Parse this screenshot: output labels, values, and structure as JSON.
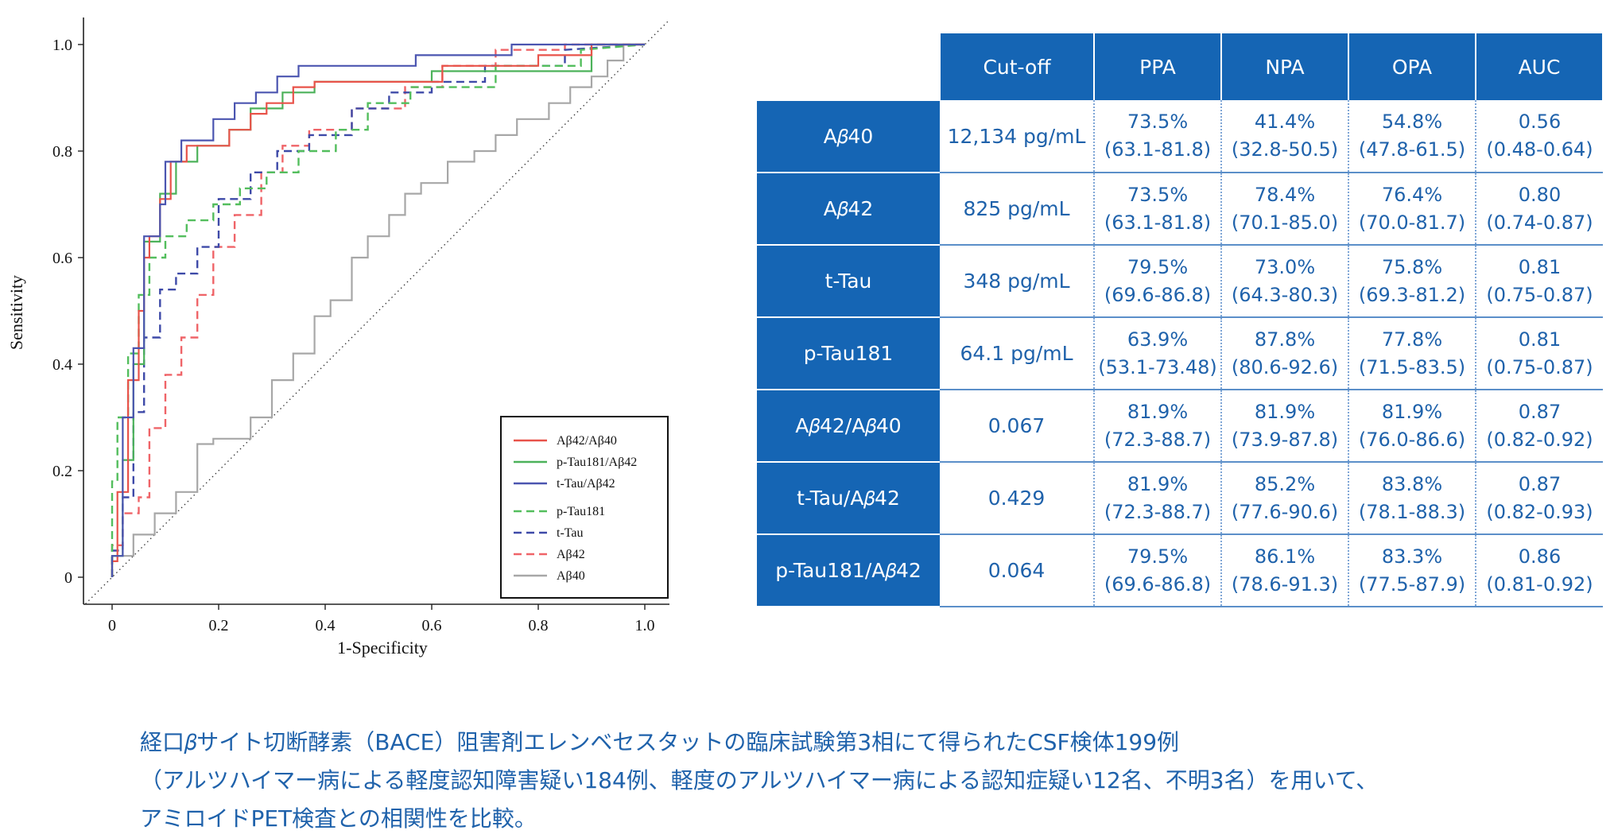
{
  "chart_data": {
    "type": "line",
    "xlabel": "1-Specificity",
    "ylabel": "Sensitivity",
    "xlim": [
      0,
      1
    ],
    "ylim": [
      0,
      1
    ],
    "xticks": [
      "0",
      "0.2",
      "0.4",
      "0.6",
      "0.8",
      "1.0"
    ],
    "yticks": [
      "0",
      "0.2",
      "0.4",
      "0.6",
      "0.8",
      "1.0"
    ],
    "legend_position": "bottom-right",
    "reference_line": "diagonal-dotted",
    "series": [
      {
        "name": "Aβ42/Aβ40",
        "color": "#e8534a",
        "style": "solid",
        "x": [
          0,
          0,
          0.01,
          0.01,
          0.03,
          0.03,
          0.05,
          0.05,
          0.06,
          0.06,
          0.07,
          0.07,
          0.09,
          0.09,
          0.11,
          0.11,
          0.14,
          0.14,
          0.22,
          0.22,
          0.26,
          0.26,
          0.29,
          0.29,
          0.34,
          0.34,
          0.38,
          0.38,
          0.62,
          0.62,
          0.8,
          0.8,
          0.9,
          0.9,
          1.0
        ],
        "y": [
          0,
          0.03,
          0.03,
          0.16,
          0.16,
          0.37,
          0.37,
          0.5,
          0.5,
          0.6,
          0.6,
          0.64,
          0.64,
          0.71,
          0.71,
          0.78,
          0.78,
          0.81,
          0.81,
          0.84,
          0.84,
          0.87,
          0.87,
          0.89,
          0.89,
          0.92,
          0.92,
          0.93,
          0.93,
          0.96,
          0.96,
          0.98,
          0.98,
          1.0,
          1.0
        ]
      },
      {
        "name": "p-Tau181/Aβ42",
        "color": "#4cb25a",
        "style": "solid",
        "x": [
          0,
          0,
          0.02,
          0.02,
          0.04,
          0.04,
          0.06,
          0.06,
          0.09,
          0.09,
          0.12,
          0.12,
          0.16,
          0.16,
          0.22,
          0.22,
          0.26,
          0.26,
          0.32,
          0.32,
          0.38,
          0.38,
          0.6,
          0.6,
          0.9,
          0.9,
          1.0
        ],
        "y": [
          0,
          0.04,
          0.04,
          0.22,
          0.22,
          0.4,
          0.4,
          0.63,
          0.63,
          0.72,
          0.72,
          0.78,
          0.78,
          0.81,
          0.81,
          0.84,
          0.84,
          0.88,
          0.88,
          0.91,
          0.91,
          0.93,
          0.93,
          0.95,
          0.95,
          1.0,
          1.0
        ]
      },
      {
        "name": "t-Tau/Aβ42",
        "color": "#4b55b0",
        "style": "solid",
        "x": [
          0,
          0,
          0.02,
          0.02,
          0.04,
          0.04,
          0.06,
          0.06,
          0.09,
          0.09,
          0.1,
          0.1,
          0.13,
          0.13,
          0.19,
          0.19,
          0.23,
          0.23,
          0.27,
          0.27,
          0.31,
          0.31,
          0.35,
          0.35,
          0.57,
          0.57,
          0.75,
          0.75,
          1.0
        ],
        "y": [
          0,
          0.04,
          0.04,
          0.3,
          0.3,
          0.43,
          0.43,
          0.64,
          0.64,
          0.7,
          0.7,
          0.78,
          0.78,
          0.82,
          0.82,
          0.86,
          0.86,
          0.89,
          0.89,
          0.91,
          0.91,
          0.94,
          0.94,
          0.96,
          0.96,
          0.98,
          0.98,
          1.0,
          1.0
        ]
      },
      {
        "name": "p-Tau181",
        "color": "#53be5d",
        "style": "dashed",
        "x": [
          0,
          0,
          0.01,
          0.01,
          0.03,
          0.03,
          0.05,
          0.05,
          0.07,
          0.07,
          0.1,
          0.1,
          0.14,
          0.14,
          0.19,
          0.19,
          0.24,
          0.24,
          0.29,
          0.29,
          0.35,
          0.35,
          0.42,
          0.42,
          0.48,
          0.48,
          0.56,
          0.56,
          0.72,
          0.72,
          0.88,
          0.88,
          1.0
        ],
        "y": [
          0,
          0.18,
          0.18,
          0.3,
          0.3,
          0.42,
          0.42,
          0.53,
          0.53,
          0.6,
          0.6,
          0.64,
          0.64,
          0.67,
          0.67,
          0.7,
          0.7,
          0.73,
          0.73,
          0.76,
          0.76,
          0.8,
          0.8,
          0.84,
          0.84,
          0.89,
          0.89,
          0.92,
          0.92,
          0.96,
          0.96,
          0.99,
          1.0
        ]
      },
      {
        "name": "t-Tau",
        "color": "#3e4aa8",
        "style": "dashed",
        "x": [
          0,
          0,
          0.02,
          0.02,
          0.04,
          0.04,
          0.06,
          0.06,
          0.09,
          0.09,
          0.12,
          0.12,
          0.16,
          0.16,
          0.2,
          0.2,
          0.26,
          0.26,
          0.31,
          0.31,
          0.37,
          0.37,
          0.45,
          0.45,
          0.52,
          0.52,
          0.6,
          0.6,
          0.7,
          0.7,
          0.85,
          0.85,
          1.0
        ],
        "y": [
          0,
          0.05,
          0.05,
          0.15,
          0.15,
          0.31,
          0.31,
          0.45,
          0.45,
          0.54,
          0.54,
          0.57,
          0.57,
          0.62,
          0.62,
          0.71,
          0.71,
          0.76,
          0.76,
          0.8,
          0.8,
          0.83,
          0.83,
          0.88,
          0.88,
          0.91,
          0.91,
          0.93,
          0.93,
          0.96,
          0.96,
          0.99,
          1.0
        ]
      },
      {
        "name": "Aβ42",
        "color": "#ef6468",
        "style": "dashed",
        "x": [
          0,
          0,
          0.02,
          0.02,
          0.05,
          0.05,
          0.07,
          0.07,
          0.1,
          0.1,
          0.13,
          0.13,
          0.16,
          0.16,
          0.19,
          0.19,
          0.23,
          0.23,
          0.28,
          0.28,
          0.32,
          0.32,
          0.37,
          0.37,
          0.45,
          0.45,
          0.55,
          0.55,
          0.62,
          0.62,
          0.72,
          0.72,
          0.85,
          0.85,
          1.0
        ],
        "y": [
          0,
          0.06,
          0.06,
          0.12,
          0.12,
          0.15,
          0.15,
          0.28,
          0.28,
          0.38,
          0.38,
          0.45,
          0.45,
          0.53,
          0.53,
          0.62,
          0.62,
          0.68,
          0.68,
          0.76,
          0.76,
          0.81,
          0.81,
          0.84,
          0.84,
          0.88,
          0.88,
          0.92,
          0.92,
          0.96,
          0.96,
          0.99,
          0.99,
          1.0,
          1.0
        ]
      },
      {
        "name": "Aβ40",
        "color": "#a7a7a7",
        "style": "solid",
        "x": [
          0,
          0,
          0.04,
          0.04,
          0.08,
          0.08,
          0.12,
          0.12,
          0.16,
          0.16,
          0.19,
          0.19,
          0.26,
          0.26,
          0.3,
          0.3,
          0.34,
          0.34,
          0.38,
          0.38,
          0.41,
          0.41,
          0.45,
          0.45,
          0.48,
          0.48,
          0.52,
          0.52,
          0.55,
          0.55,
          0.58,
          0.58,
          0.63,
          0.63,
          0.68,
          0.68,
          0.72,
          0.72,
          0.76,
          0.76,
          0.82,
          0.82,
          0.86,
          0.86,
          0.9,
          0.9,
          0.93,
          0.93,
          0.96,
          0.96,
          1.0
        ],
        "y": [
          0,
          0.04,
          0.04,
          0.08,
          0.08,
          0.12,
          0.12,
          0.16,
          0.16,
          0.25,
          0.25,
          0.26,
          0.26,
          0.3,
          0.3,
          0.37,
          0.37,
          0.42,
          0.42,
          0.49,
          0.49,
          0.52,
          0.52,
          0.6,
          0.6,
          0.64,
          0.64,
          0.68,
          0.68,
          0.72,
          0.72,
          0.74,
          0.74,
          0.78,
          0.78,
          0.8,
          0.8,
          0.83,
          0.83,
          0.86,
          0.86,
          0.89,
          0.89,
          0.92,
          0.92,
          0.94,
          0.94,
          0.97,
          0.97,
          1.0,
          1.0
        ]
      }
    ]
  },
  "table": {
    "columns": [
      "Cut-off",
      "PPA",
      "NPA",
      "OPA",
      "AUC"
    ],
    "rows": [
      {
        "label": "A𝛽40",
        "cutoff": "12,134 pg/mL",
        "ppa": [
          "73.5%",
          "(63.1-81.8)"
        ],
        "npa": [
          "41.4%",
          "(32.8-50.5)"
        ],
        "opa": [
          "54.8%",
          "(47.8-61.5)"
        ],
        "auc": [
          "0.56",
          "(0.48-0.64)"
        ]
      },
      {
        "label": "A𝛽42",
        "cutoff": "825 pg/mL",
        "ppa": [
          "73.5%",
          "(63.1-81.8)"
        ],
        "npa": [
          "78.4%",
          "(70.1-85.0)"
        ],
        "opa": [
          "76.4%",
          "(70.0-81.7)"
        ],
        "auc": [
          "0.80",
          "(0.74-0.87)"
        ]
      },
      {
        "label": "t-Tau",
        "cutoff": "348 pg/mL",
        "ppa": [
          "79.5%",
          "(69.6-86.8)"
        ],
        "npa": [
          "73.0%",
          "(64.3-80.3)"
        ],
        "opa": [
          "75.8%",
          "(69.3-81.2)"
        ],
        "auc": [
          "0.81",
          "(0.75-0.87)"
        ]
      },
      {
        "label": "p-Tau181",
        "cutoff": "64.1 pg/mL",
        "ppa": [
          "63.9%",
          "(53.1-73.48)"
        ],
        "npa": [
          "87.8%",
          "(80.6-92.6)"
        ],
        "opa": [
          "77.8%",
          "(71.5-83.5)"
        ],
        "auc": [
          "0.81",
          "(0.75-0.87)"
        ]
      },
      {
        "label": "A𝛽42/A𝛽40",
        "cutoff": "0.067",
        "ppa": [
          "81.9%",
          "(72.3-88.7)"
        ],
        "npa": [
          "81.9%",
          "(73.9-87.8)"
        ],
        "opa": [
          "81.9%",
          "(76.0-86.6)"
        ],
        "auc": [
          "0.87",
          "(0.82-0.92)"
        ]
      },
      {
        "label": "t-Tau/A𝛽42",
        "cutoff": "0.429",
        "ppa": [
          "81.9%",
          "(72.3-88.7)"
        ],
        "npa": [
          "85.2%",
          "(77.6-90.6)"
        ],
        "opa": [
          "83.8%",
          "(78.1-88.3)"
        ],
        "auc": [
          "0.87",
          "(0.82-0.93)"
        ]
      },
      {
        "label": "p-Tau181/A𝛽42",
        "cutoff": "0.064",
        "ppa": [
          "79.5%",
          "(69.6-86.8)"
        ],
        "npa": [
          "86.1%",
          "(78.6-91.3)"
        ],
        "opa": [
          "83.3%",
          "(77.5-87.9)"
        ],
        "auc": [
          "0.86",
          "(0.81-0.92)"
        ]
      }
    ]
  },
  "caption": [
    "経口𝛽サイト切断酵素（BACE）阻害剤エレンベセスタットの臨床試験第3相にて得られたCSF検体199例",
    "（アルツハイマー病による軽度認知障害疑い184例、軽度のアルツハイマー病による認知症疑い12名、不明3名）を用いて、",
    "アミロイドPET検査との相関性を比較。"
  ]
}
